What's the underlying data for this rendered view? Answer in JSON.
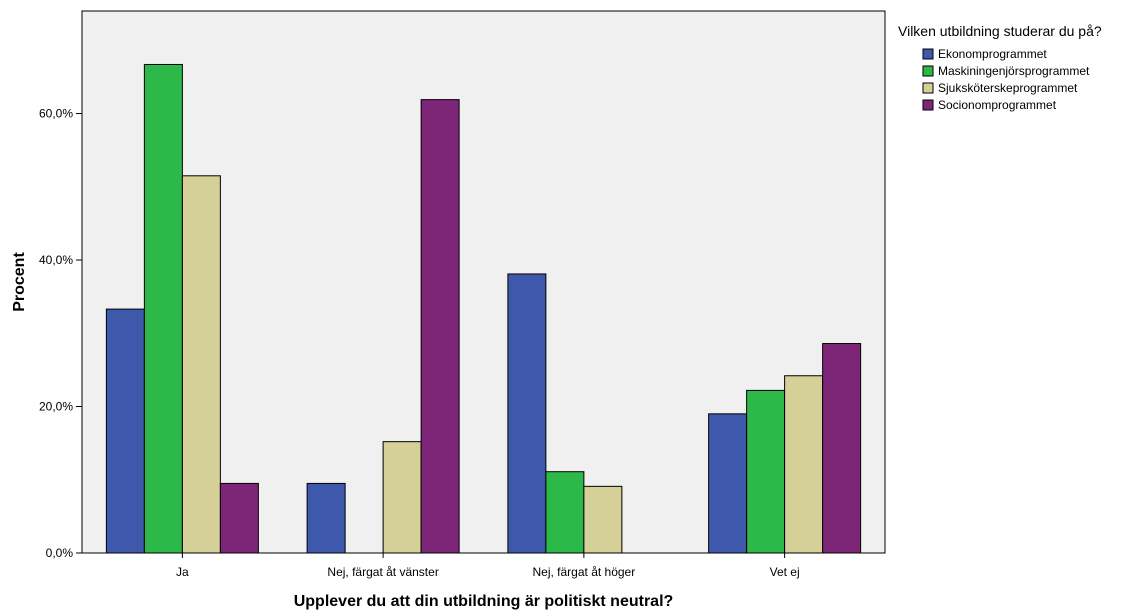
{
  "chart_data": {
    "type": "bar",
    "title": "",
    "xlabel": "Upplever du att din utbildning är politiskt neutral?",
    "ylabel": "Procent",
    "categories": [
      "Ja",
      "Nej, färgat åt vänster",
      "Nej, färgat åt höger",
      "Vet ej"
    ],
    "ylim": [
      0,
      74
    ],
    "yticks": [
      0,
      20,
      40,
      60
    ],
    "ytick_labels": [
      "0,0%",
      "20,0%",
      "40,0%",
      "60,0%"
    ],
    "grid": false,
    "plot_background": "#f0f0f0",
    "legend": {
      "title": "Vilken utbildning studerar du på?",
      "placement": "top-right outside"
    },
    "series": [
      {
        "name": "Ekonomprogrammet",
        "color": "#3e58ac",
        "values": [
          33.3,
          9.5,
          38.1,
          19.0
        ]
      },
      {
        "name": "Maskiningenjörsprogrammet",
        "color": "#2db84a",
        "values": [
          66.7,
          0.0,
          11.1,
          22.2
        ]
      },
      {
        "name": "Sjuksköterskeprogrammet",
        "color": "#d5cf98",
        "values": [
          51.5,
          15.2,
          9.1,
          24.2
        ]
      },
      {
        "name": "Socionomprogrammet",
        "color": "#7d2677",
        "values": [
          9.5,
          61.9,
          0.0,
          28.6
        ]
      }
    ]
  }
}
